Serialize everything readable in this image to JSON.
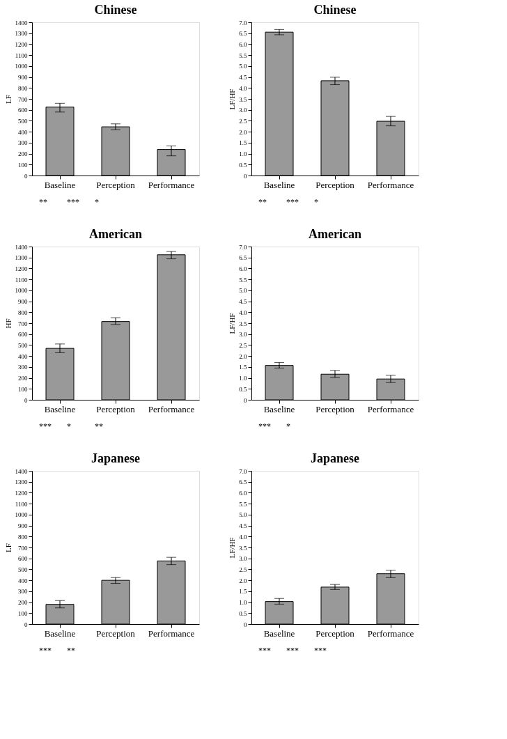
{
  "chart_data": [
    {
      "type": "bar",
      "title": "Chinese",
      "ylabel": "LF",
      "categories": [
        "Baseline",
        "Perception",
        "Performance"
      ],
      "values": [
        625,
        445,
        238
      ],
      "errors": [
        [
          580,
          660
        ],
        [
          418,
          472
        ],
        [
          180,
          270
        ]
      ],
      "color": "#999999",
      "ylim": [
        0,
        1400
      ],
      "yticks": [
        0,
        100,
        200,
        300,
        400,
        500,
        600,
        700,
        800,
        900,
        1000,
        1100,
        1200,
        1300,
        1400
      ],
      "grid": false,
      "annotations": [
        "**",
        "***",
        "*"
      ]
    },
    {
      "type": "bar",
      "title": "Chinese",
      "ylabel": "LF/HF",
      "categories": [
        "Baseline",
        "Perception",
        "Performance"
      ],
      "values": [
        6.55,
        4.33,
        2.48
      ],
      "errors": [
        [
          6.43,
          6.67
        ],
        [
          4.15,
          4.49
        ],
        [
          2.27,
          2.7
        ]
      ],
      "color": "#999999",
      "ylim": [
        0,
        7
      ],
      "yticks": [
        {
          "value": 0,
          "label": "0"
        },
        {
          "value": 0.5,
          "label": "0.5"
        },
        {
          "value": 1,
          "label": "1.0"
        },
        {
          "value": 1.5,
          "label": "1.5"
        },
        {
          "value": 2,
          "label": "2.0"
        },
        {
          "value": 2.5,
          "label": "2.5"
        },
        {
          "value": 3,
          "label": "3.0"
        },
        {
          "value": 3.5,
          "label": "3.5"
        },
        {
          "value": 4,
          "label": "4.0"
        },
        {
          "value": 4.5,
          "label": "4.5"
        },
        {
          "value": 5,
          "label": "5.0"
        },
        {
          "value": 5.5,
          "label": "5.5"
        },
        {
          "value": 6,
          "label": "6.0"
        },
        {
          "value": 6.5,
          "label": "6.5"
        },
        {
          "value": 7,
          "label": "7.0"
        }
      ],
      "grid": false,
      "annotations": [
        "**",
        "***",
        "*"
      ]
    },
    {
      "type": "bar",
      "title": "American",
      "ylabel": "HF",
      "categories": [
        "Baseline",
        "Perception",
        "Performance"
      ],
      "values": [
        470,
        715,
        1325
      ],
      "errors": [
        [
          430,
          510
        ],
        [
          688,
          750
        ],
        [
          1288,
          1355
        ]
      ],
      "color": "#999999",
      "ylim": [
        0,
        1400
      ],
      "yticks": [
        0,
        100,
        200,
        300,
        400,
        500,
        600,
        700,
        800,
        900,
        1000,
        1100,
        1200,
        1300,
        1400
      ],
      "grid": false,
      "annotations": [
        "***",
        "*",
        "**"
      ]
    },
    {
      "type": "bar",
      "title": "American",
      "ylabel": "LF/HF",
      "categories": [
        "Baseline",
        "Perception",
        "Performance"
      ],
      "values": [
        1.57,
        1.17,
        0.95
      ],
      "errors": [
        [
          1.45,
          1.7
        ],
        [
          1.02,
          1.34
        ],
        [
          0.79,
          1.12
        ]
      ],
      "color": "#999999",
      "ylim": [
        0,
        7
      ],
      "yticks": [
        {
          "value": 0,
          "label": "0"
        },
        {
          "value": 0.5,
          "label": "0.5"
        },
        {
          "value": 1,
          "label": "1.0"
        },
        {
          "value": 1.5,
          "label": "1.5"
        },
        {
          "value": 2,
          "label": "2.0"
        },
        {
          "value": 2.5,
          "label": "2.5"
        },
        {
          "value": 3,
          "label": "3.0"
        },
        {
          "value": 3.5,
          "label": "3.5"
        },
        {
          "value": 4,
          "label": "4.0"
        },
        {
          "value": 4.5,
          "label": "4.5"
        },
        {
          "value": 5,
          "label": "5.0"
        },
        {
          "value": 5.5,
          "label": "5.5"
        },
        {
          "value": 6,
          "label": "6.0"
        },
        {
          "value": 6.5,
          "label": "6.5"
        },
        {
          "value": 7,
          "label": "7.0"
        }
      ],
      "grid": false,
      "annotations": [
        "***",
        "*"
      ]
    },
    {
      "type": "bar",
      "title": "Japanese",
      "ylabel": "LF",
      "categories": [
        "Baseline",
        "Perception",
        "Performance"
      ],
      "values": [
        180,
        400,
        577
      ],
      "errors": [
        [
          148,
          215
        ],
        [
          372,
          425
        ],
        [
          543,
          610
        ]
      ],
      "color": "#999999",
      "ylim": [
        0,
        1400
      ],
      "yticks": [
        0,
        100,
        200,
        300,
        400,
        500,
        600,
        700,
        800,
        900,
        1000,
        1100,
        1200,
        1300,
        1400
      ],
      "grid": false,
      "annotations": [
        "***",
        "**"
      ]
    },
    {
      "type": "bar",
      "title": "Japanese",
      "ylabel": "LF/HF",
      "categories": [
        "Baseline",
        "Perception",
        "Performance"
      ],
      "values": [
        1.03,
        1.69,
        2.3
      ],
      "errors": [
        [
          0.91,
          1.17
        ],
        [
          1.58,
          1.81
        ],
        [
          2.12,
          2.46
        ]
      ],
      "color": "#999999",
      "ylim": [
        0,
        7
      ],
      "yticks": [
        {
          "value": 0,
          "label": "0"
        },
        {
          "value": 0.5,
          "label": "0.5"
        },
        {
          "value": 1,
          "label": "1.0"
        },
        {
          "value": 1.5,
          "label": "1.5"
        },
        {
          "value": 2,
          "label": "2.0"
        },
        {
          "value": 2.5,
          "label": "2.5"
        },
        {
          "value": 3,
          "label": "3.0"
        },
        {
          "value": 3.5,
          "label": "3.5"
        },
        {
          "value": 4,
          "label": "4.0"
        },
        {
          "value": 4.5,
          "label": "4.5"
        },
        {
          "value": 5,
          "label": "5.0"
        },
        {
          "value": 5.5,
          "label": "5.5"
        },
        {
          "value": 6,
          "label": "6.0"
        },
        {
          "value": 6.5,
          "label": "6.5"
        },
        {
          "value": 7,
          "label": "7.0"
        }
      ],
      "grid": false,
      "annotations": [
        "***",
        "***",
        "***"
      ]
    }
  ]
}
